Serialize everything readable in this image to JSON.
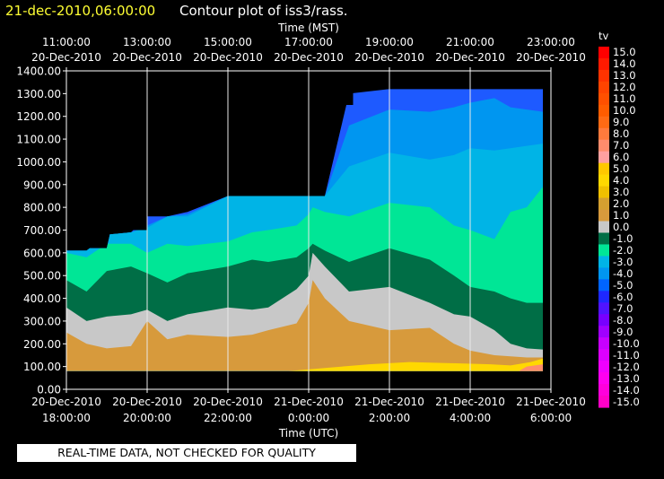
{
  "chart_data": {
    "type": "heatmap",
    "date_title": "21-dec-2010,06:00:00",
    "title": "Contour plot of iss3/rass.",
    "top_axis": {
      "label": "Time (MST)",
      "ticks": [
        {
          "time": "11:00:00",
          "date": "20-Dec-2010"
        },
        {
          "time": "13:00:00",
          "date": "20-Dec-2010"
        },
        {
          "time": "15:00:00",
          "date": "20-Dec-2010"
        },
        {
          "time": "17:00:00",
          "date": "20-Dec-2010"
        },
        {
          "time": "19:00:00",
          "date": "20-Dec-2010"
        },
        {
          "time": "21:00:00",
          "date": "20-Dec-2010"
        },
        {
          "time": "23:00:00",
          "date": "20-Dec-2010"
        }
      ]
    },
    "bottom_axis": {
      "label": "Time (UTC)",
      "ticks": [
        {
          "date": "20-Dec-2010",
          "time": "18:00:00"
        },
        {
          "date": "20-Dec-2010",
          "time": "20:00:00"
        },
        {
          "date": "20-Dec-2010",
          "time": "22:00:00"
        },
        {
          "date": "21-Dec-2010",
          "time": "0:00:00"
        },
        {
          "date": "21-Dec-2010",
          "time": "2:00:00"
        },
        {
          "date": "21-Dec-2010",
          "time": "4:00:00"
        },
        {
          "date": "21-Dec-2010",
          "time": "6:00:00"
        }
      ]
    },
    "x_range_utc_hours": [
      18.0,
      30.0
    ],
    "y_ticks": [
      "0.00",
      "100.00",
      "200.00",
      "300.00",
      "400.00",
      "500.00",
      "600.00",
      "700.00",
      "800.00",
      "900.00",
      "1000.00",
      "1100.00",
      "1200.00",
      "1300.00",
      "1400.00"
    ],
    "ylim": [
      0,
      1400
    ],
    "grid": "vertical",
    "colorbar": {
      "label": "tv",
      "ticks": [
        "15.0",
        "14.0",
        "13.0",
        "12.0",
        "11.0",
        "10.0",
        "9.0",
        "8.0",
        "7.0",
        "6.0",
        "5.0",
        "4.0",
        "3.0",
        "2.0",
        "1.0",
        "0.0",
        "-1.0",
        "-2.0",
        "-3.0",
        "-4.0",
        "-5.0",
        "-6.0",
        "-7.0",
        "-8.0",
        "-9.0",
        "-10.0",
        "-11.0",
        "-12.0",
        "-13.0",
        "-14.0",
        "-15.0"
      ],
      "colors": [
        "#ff0000",
        "#ff1a00",
        "#ff3300",
        "#ff4400",
        "#ff5000",
        "#ff5c00",
        "#ff6a14",
        "#ff7a3c",
        "#ff8c6c",
        "#ffa0a0",
        "#ffc800",
        "#ffd800",
        "#f0c000",
        "#d4a030",
        "#d79a3c",
        "#c8c8c8",
        "#006e46",
        "#00e696",
        "#00b4e6",
        "#0096f0",
        "#0064ff",
        "#1e28ff",
        "#5014ff",
        "#7800ff",
        "#a000ff",
        "#c800ff",
        "#dc00ff",
        "#f000ff",
        "#ff00f0",
        "#ff00dc",
        "#ff00c8"
      ]
    },
    "series": [
      {
        "color": "#d79a3c",
        "top": [
          [
            18.0,
            250
          ],
          [
            18.5,
            200
          ],
          [
            19.0,
            180
          ],
          [
            19.6,
            190
          ],
          [
            20.0,
            300
          ],
          [
            20.5,
            220
          ],
          [
            21.0,
            240
          ],
          [
            22.0,
            230
          ],
          [
            22.6,
            240
          ],
          [
            23.0,
            260
          ],
          [
            23.7,
            290
          ],
          [
            24.0,
            380
          ],
          [
            24.1,
            480
          ],
          [
            24.4,
            400
          ],
          [
            25.0,
            300
          ],
          [
            26.0,
            260
          ],
          [
            27.0,
            270
          ],
          [
            27.6,
            200
          ],
          [
            28.0,
            170
          ],
          [
            28.6,
            150
          ],
          [
            29.0,
            145
          ],
          [
            29.4,
            140
          ],
          [
            29.8,
            140
          ]
        ]
      },
      {
        "color": "#c8c8c8",
        "top": [
          [
            18.0,
            360
          ],
          [
            18.5,
            300
          ],
          [
            19.0,
            320
          ],
          [
            19.6,
            330
          ],
          [
            20.0,
            350
          ],
          [
            20.5,
            300
          ],
          [
            21.0,
            330
          ],
          [
            22.0,
            360
          ],
          [
            22.6,
            350
          ],
          [
            23.0,
            360
          ],
          [
            23.7,
            440
          ],
          [
            24.0,
            500
          ],
          [
            24.1,
            600
          ],
          [
            24.4,
            540
          ],
          [
            25.0,
            430
          ],
          [
            26.0,
            450
          ],
          [
            27.0,
            380
          ],
          [
            27.6,
            330
          ],
          [
            28.0,
            320
          ],
          [
            28.6,
            260
          ],
          [
            29.0,
            200
          ],
          [
            29.4,
            180
          ],
          [
            29.8,
            175
          ]
        ]
      },
      {
        "color": "#006e46",
        "top": [
          [
            18.0,
            480
          ],
          [
            18.5,
            430
          ],
          [
            19.0,
            520
          ],
          [
            19.6,
            540
          ],
          [
            20.0,
            510
          ],
          [
            20.5,
            470
          ],
          [
            21.0,
            510
          ],
          [
            22.0,
            540
          ],
          [
            22.6,
            570
          ],
          [
            23.0,
            560
          ],
          [
            23.7,
            580
          ],
          [
            24.0,
            620
          ],
          [
            24.1,
            640
          ],
          [
            24.4,
            610
          ],
          [
            25.0,
            560
          ],
          [
            26.0,
            620
          ],
          [
            27.0,
            570
          ],
          [
            27.6,
            500
          ],
          [
            28.0,
            450
          ],
          [
            28.6,
            430
          ],
          [
            29.0,
            400
          ],
          [
            29.4,
            380
          ],
          [
            29.8,
            380
          ]
        ]
      },
      {
        "color": "#00e696",
        "top": [
          [
            18.0,
            600
          ],
          [
            18.5,
            580
          ],
          [
            19.0,
            640
          ],
          [
            19.6,
            640
          ],
          [
            20.0,
            600
          ],
          [
            20.5,
            640
          ],
          [
            21.0,
            630
          ],
          [
            22.0,
            650
          ],
          [
            22.6,
            690
          ],
          [
            23.0,
            700
          ],
          [
            23.7,
            720
          ],
          [
            24.0,
            770
          ],
          [
            24.1,
            800
          ],
          [
            24.4,
            780
          ],
          [
            25.0,
            760
          ],
          [
            26.0,
            820
          ],
          [
            27.0,
            800
          ],
          [
            27.6,
            720
          ],
          [
            28.0,
            700
          ],
          [
            28.6,
            660
          ],
          [
            29.0,
            780
          ],
          [
            29.4,
            800
          ],
          [
            29.8,
            890
          ]
        ]
      },
      {
        "color": "#00b4e6",
        "top": [
          [
            18.0,
            610
          ],
          [
            18.5,
            610
          ],
          [
            19.0,
            680
          ],
          [
            19.6,
            690
          ],
          [
            20.0,
            710
          ],
          [
            20.5,
            760
          ],
          [
            21.0,
            760
          ],
          [
            22.0,
            850
          ],
          [
            22.6,
            850
          ],
          [
            23.0,
            850
          ],
          [
            23.7,
            850
          ],
          [
            24.0,
            850
          ],
          [
            24.1,
            850
          ],
          [
            24.4,
            850
          ],
          [
            25.0,
            980
          ],
          [
            26.0,
            1040
          ],
          [
            27.0,
            1010
          ],
          [
            27.6,
            1030
          ],
          [
            28.0,
            1060
          ],
          [
            28.6,
            1050
          ],
          [
            29.0,
            1060
          ],
          [
            29.4,
            1070
          ],
          [
            29.8,
            1080
          ]
        ]
      },
      {
        "color": "#0096f0",
        "top": [
          [
            18.0,
            610
          ],
          [
            18.5,
            610
          ],
          [
            19.0,
            680
          ],
          [
            19.6,
            690
          ],
          [
            20.0,
            720
          ],
          [
            20.5,
            760
          ],
          [
            21.0,
            770
          ],
          [
            22.0,
            850
          ],
          [
            22.6,
            850
          ],
          [
            23.0,
            850
          ],
          [
            23.7,
            850
          ],
          [
            24.0,
            850
          ],
          [
            24.1,
            850
          ],
          [
            24.4,
            850
          ],
          [
            25.0,
            1160
          ],
          [
            26.0,
            1230
          ],
          [
            27.0,
            1220
          ],
          [
            27.6,
            1240
          ],
          [
            28.0,
            1260
          ],
          [
            28.6,
            1280
          ],
          [
            29.0,
            1240
          ],
          [
            29.4,
            1230
          ],
          [
            29.8,
            1220
          ]
        ]
      },
      {
        "color": "#1e5aff",
        "top": [
          [
            18.0,
            610
          ],
          [
            18.5,
            610
          ],
          [
            19.0,
            680
          ],
          [
            19.6,
            690
          ],
          [
            20.0,
            760
          ],
          [
            20.5,
            760
          ],
          [
            21.0,
            780
          ],
          [
            22.0,
            850
          ],
          [
            22.6,
            850
          ],
          [
            23.0,
            850
          ],
          [
            23.7,
            850
          ],
          [
            24.0,
            850
          ],
          [
            24.1,
            850
          ],
          [
            24.4,
            850
          ],
          [
            25.0,
            1300
          ],
          [
            26.0,
            1320
          ],
          [
            27.0,
            1320
          ],
          [
            27.6,
            1320
          ],
          [
            28.0,
            1320
          ],
          [
            28.6,
            1320
          ],
          [
            29.0,
            1320
          ],
          [
            29.4,
            1320
          ],
          [
            29.8,
            1320
          ]
        ]
      }
    ],
    "extra_bands": [
      {
        "color": "#ffd800",
        "points": [
          [
            23.5,
            80
          ],
          [
            24.5,
            95
          ],
          [
            25.5,
            110
          ],
          [
            26.5,
            120
          ],
          [
            27.5,
            115
          ],
          [
            28.5,
            110
          ],
          [
            29.0,
            105
          ],
          [
            29.5,
            120
          ],
          [
            29.8,
            135
          ]
        ]
      },
      {
        "color": "#ff8c6c",
        "points": [
          [
            29.2,
            80
          ],
          [
            29.4,
            100
          ],
          [
            29.6,
            105
          ],
          [
            29.8,
            110
          ]
        ]
      }
    ],
    "data_top": [
      [
        18.0,
        620
      ],
      [
        19.0,
        620
      ],
      [
        19.1,
        700
      ],
      [
        20.0,
        700
      ],
      [
        20.0,
        780
      ],
      [
        20.5,
        780
      ],
      [
        20.5,
        780
      ],
      [
        21.0,
        780
      ],
      [
        21.0,
        860
      ],
      [
        24.4,
        860
      ],
      [
        24.4,
        1170
      ],
      [
        24.8,
        1170
      ],
      [
        24.8,
        1250
      ],
      [
        25.1,
        1250
      ],
      [
        25.1,
        1320
      ],
      [
        29.8,
        1320
      ]
    ],
    "data_bottom": 80
  },
  "disclaimer": "REAL-TIME DATA, NOT CHECKED FOR QUALITY"
}
